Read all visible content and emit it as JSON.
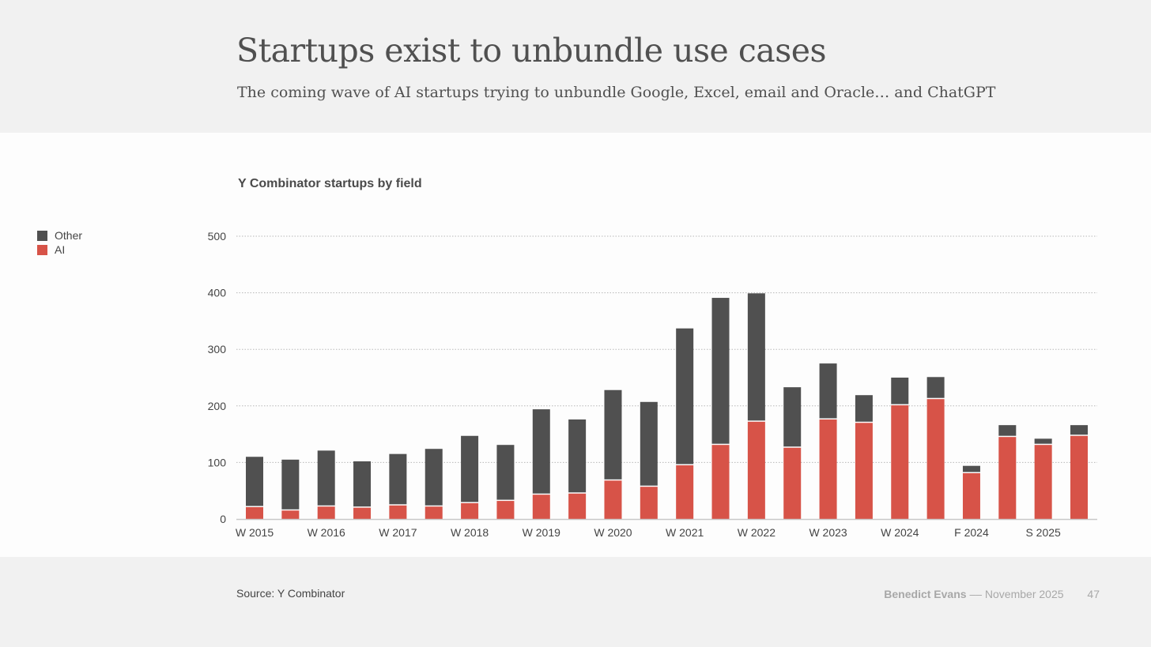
{
  "slide": {
    "title": "Startups exist to unbundle use cases",
    "subtitle": "The coming wave of AI startups trying to unbundle Google, Excel, email and Oracle… and ChatGPT",
    "source": "Source: Y Combinator",
    "author": "Benedict Evans",
    "separator": "––",
    "date": "November 2025",
    "page_number": "47"
  },
  "chart_data": {
    "type": "bar",
    "stacked": true,
    "title": "Y Combinator startups by field",
    "xlabel": "",
    "ylabel": "",
    "ylim": [
      0,
      500
    ],
    "yticks": [
      0,
      100,
      200,
      300,
      400,
      500
    ],
    "grid": true,
    "legend_placement": "left",
    "categories": [
      "W 2015",
      "",
      "W 2016",
      "",
      "W 2017",
      "",
      "W 2018",
      "",
      "W 2019",
      "",
      "W 2020",
      "",
      "W 2021",
      "",
      "W 2022",
      "",
      "W 2023",
      "",
      "W 2024",
      "",
      "F 2024",
      "",
      "S 2025",
      ""
    ],
    "series": [
      {
        "name": "AI",
        "color": "#d75348",
        "values": [
          21,
          15,
          22,
          20,
          24,
          22,
          28,
          32,
          43,
          45,
          68,
          57,
          95,
          131,
          172,
          126,
          176,
          170,
          201,
          212,
          81,
          145,
          131,
          147
        ]
      },
      {
        "name": "Other",
        "color": "#505050",
        "values": [
          89,
          90,
          99,
          82,
          91,
          102,
          119,
          99,
          151,
          131,
          160,
          150,
          242,
          260,
          227,
          107,
          99,
          49,
          49,
          39,
          13,
          21,
          11,
          19
        ]
      }
    ],
    "legend_order": [
      "Other",
      "AI"
    ]
  }
}
